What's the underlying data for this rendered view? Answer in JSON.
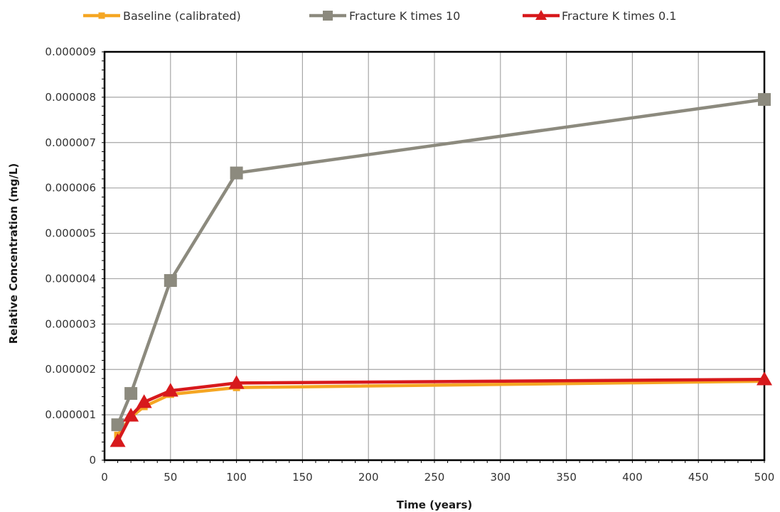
{
  "chart_data": {
    "type": "line",
    "xlabel": "Time (years)",
    "ylabel": "Relative Concentration (mg/L)",
    "xlim": [
      0,
      500
    ],
    "ylim": [
      0,
      9e-06
    ],
    "x_ticks": [
      "0",
      "50",
      "100",
      "150",
      "200",
      "250",
      "300",
      "350",
      "400",
      "450",
      "500"
    ],
    "y_ticks": [
      "0",
      "0.000001",
      "0.000002",
      "0.000003",
      "0.000004",
      "0.000005",
      "0.000006",
      "0.000007",
      "0.000008",
      "0.000009"
    ],
    "grid": true,
    "legend_position": "top",
    "series": [
      {
        "name": "Baseline (calibrated)",
        "color": "#F5A623",
        "marker": "square",
        "points": [
          {
            "x": 10,
            "y": 5.5e-07
          },
          {
            "x": 20,
            "y": 9.5e-07
          },
          {
            "x": 30,
            "y": 1.18e-06
          },
          {
            "x": 50,
            "y": 1.45e-06
          },
          {
            "x": 100,
            "y": 1.6e-06
          },
          {
            "x": 500,
            "y": 1.74e-06
          }
        ]
      },
      {
        "name": "Fracture K times 10",
        "color": "#8C8A7E",
        "marker": "square",
        "points": [
          {
            "x": 10,
            "y": 7.8e-07
          },
          {
            "x": 20,
            "y": 1.47e-06
          },
          {
            "x": 50,
            "y": 3.96e-06
          },
          {
            "x": 100,
            "y": 6.33e-06
          },
          {
            "x": 500,
            "y": 7.95e-06
          }
        ]
      },
      {
        "name": "Fracture K times 0.1",
        "color": "#D7191C",
        "marker": "triangle",
        "points": [
          {
            "x": 10,
            "y": 4.2e-07
          },
          {
            "x": 20,
            "y": 9.8e-07
          },
          {
            "x": 30,
            "y": 1.28e-06
          },
          {
            "x": 50,
            "y": 1.53e-06
          },
          {
            "x": 100,
            "y": 1.7e-06
          },
          {
            "x": 500,
            "y": 1.78e-06
          }
        ]
      }
    ]
  }
}
